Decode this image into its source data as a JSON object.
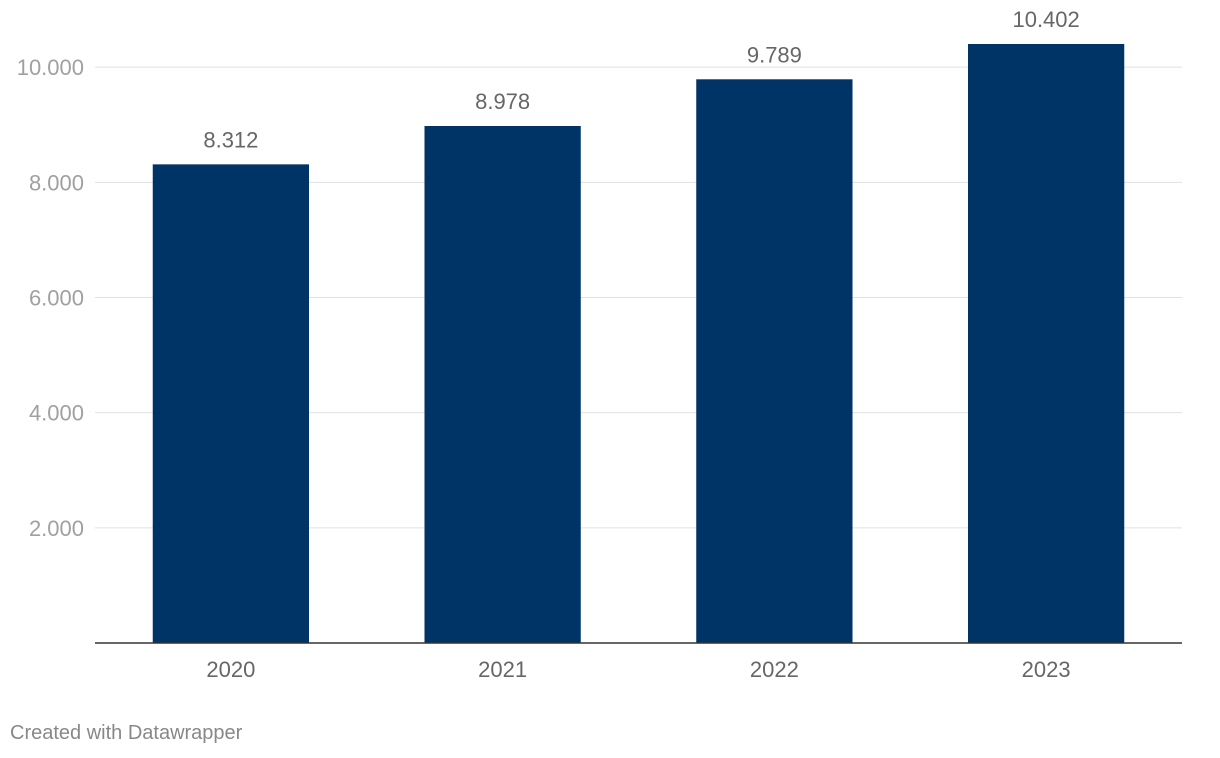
{
  "chart_data": {
    "type": "bar",
    "categories": [
      "2020",
      "2021",
      "2022",
      "2023"
    ],
    "values": [
      8312,
      8978,
      9789,
      10402
    ],
    "value_labels": [
      "8.312",
      "8.978",
      "9.789",
      "10.402"
    ],
    "title": "",
    "xlabel": "",
    "ylabel": "",
    "ylim": [
      0,
      10402
    ],
    "yticks": [
      2000,
      4000,
      6000,
      8000,
      10000
    ],
    "ytick_labels": [
      "2.000",
      "4.000",
      "6.000",
      "8.000",
      "10.000"
    ],
    "grid": true,
    "legend": "none",
    "bar_color": "#003366"
  },
  "footer": {
    "credit": "Created with Datawrapper"
  }
}
